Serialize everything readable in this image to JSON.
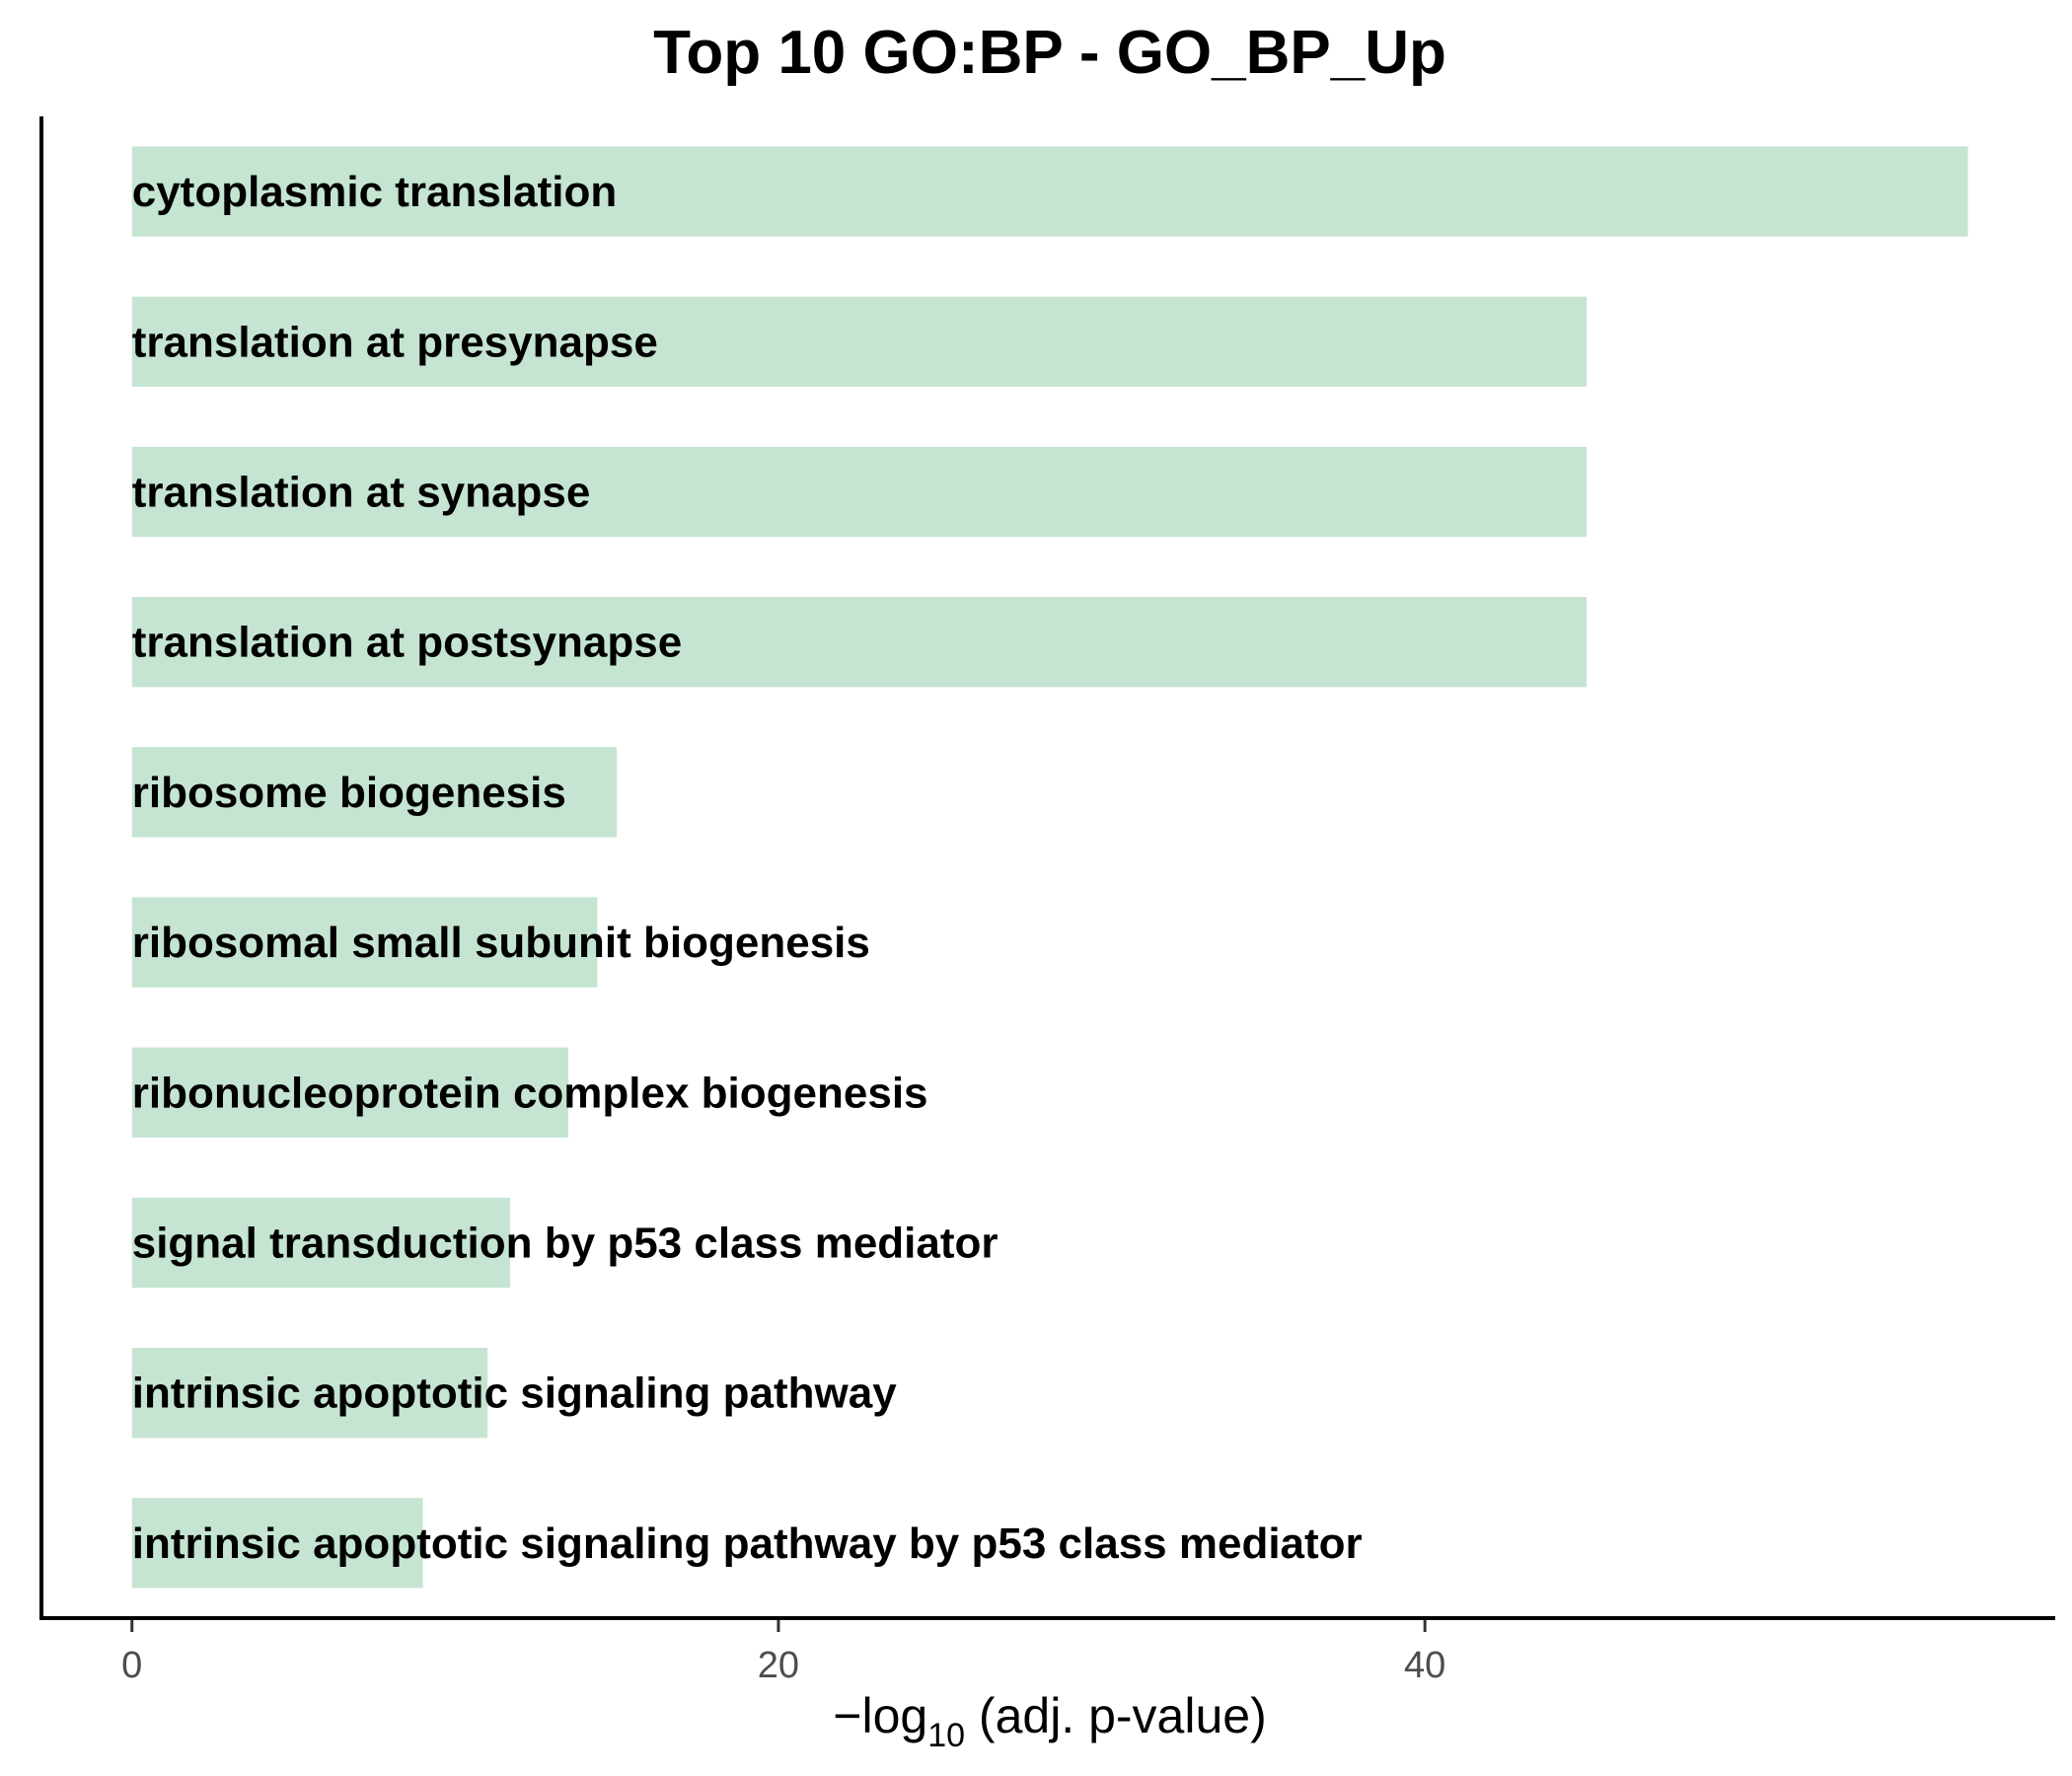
{
  "chart_data": {
    "type": "bar",
    "orientation": "horizontal",
    "title": "Top 10 GO:BP - GO_BP_Up",
    "xlabel": {
      "prefix": "−log",
      "subscript": "10",
      "suffix": " (adj. p-value)"
    },
    "ylabel": "",
    "xlim": [
      -2.8,
      59.5
    ],
    "xticks": [
      0,
      20,
      40
    ],
    "categories": [
      "cytoplasmic translation",
      "translation at presynapse",
      "translation at synapse",
      "translation at postsynapse",
      "ribosome biogenesis",
      "ribosomal small subunit biogenesis",
      "ribonucleoprotein complex biogenesis",
      "signal transduction by p53 class mediator",
      "intrinsic apoptotic signaling pathway",
      "intrinsic apoptotic signaling pathway by p53 class mediator"
    ],
    "values": [
      56.8,
      45.0,
      45.0,
      45.0,
      15.0,
      14.4,
      13.5,
      11.7,
      11.0,
      9.0
    ],
    "bar_color": "#c5e4d2",
    "grid": false,
    "legend": "none"
  }
}
